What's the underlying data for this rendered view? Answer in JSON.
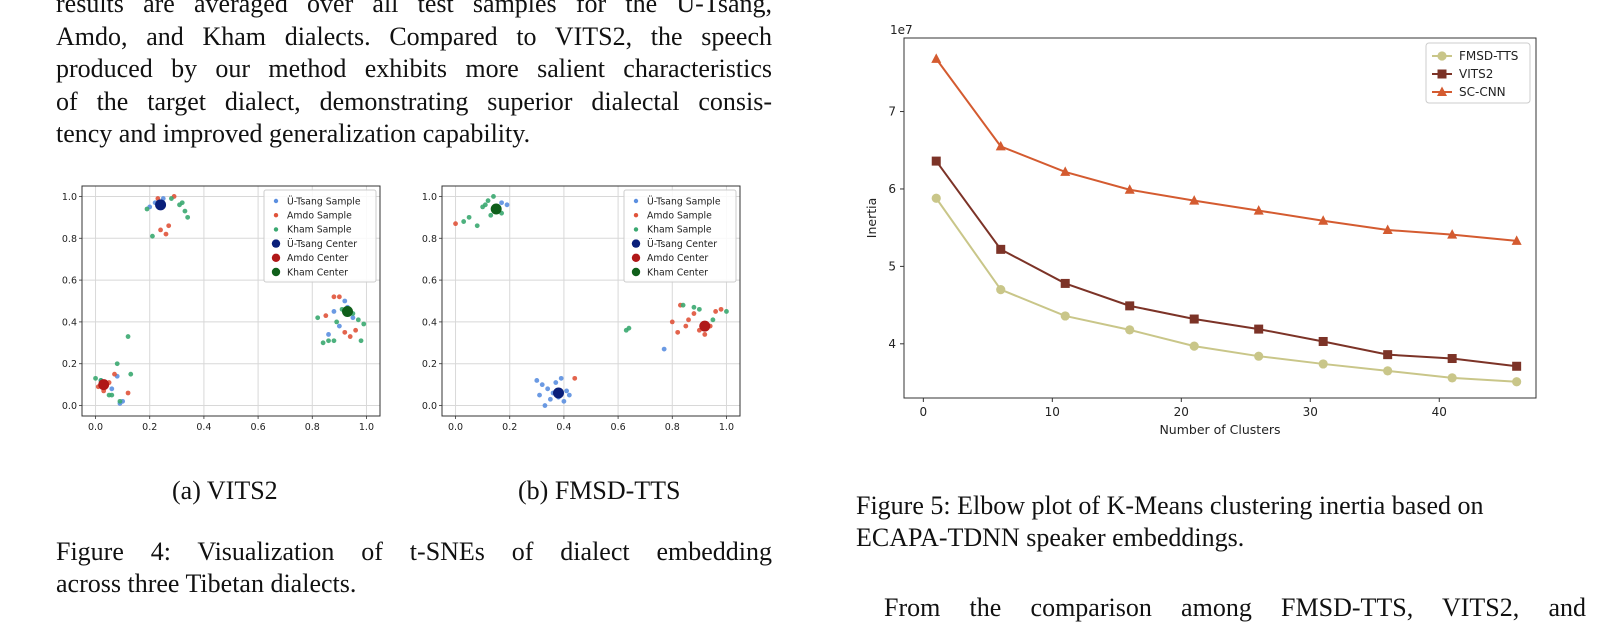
{
  "intro": {
    "lines": [
      "results are averaged over all test samples for the Ü-Tsang,",
      "Amdo, and Kham dialects. Compared to VITS2, the speech",
      "produced by our method exhibits more salient characteristics",
      "of the target dialect, demonstrating superior dialectal consis-",
      "tency and improved generalization capability."
    ]
  },
  "figure4": {
    "subcaption_a": "(a) VITS2",
    "subcaption_b": "(b) FMSD-TTS",
    "caption_line1": "Figure 4: Visualization of t-SNEs of dialect embedding",
    "caption_line2": "across three Tibetan dialects."
  },
  "figure5": {
    "caption_line1": "Figure 5: Elbow plot of K-Means clustering inertia based on",
    "caption_line2": "ECAPA-TDNN speaker embeddings."
  },
  "next_paragraph": "From the comparison among FMSD-TTS, VITS2, and",
  "chart_data": [
    {
      "type": "scatter",
      "panel": "(a) VITS2",
      "xlim": [
        0,
        1
      ],
      "ylim": [
        0,
        1
      ],
      "xticks": [
        "0.0",
        "0.2",
        "0.4",
        "0.6",
        "0.8",
        "1.0"
      ],
      "yticks": [
        "0.0",
        "0.2",
        "0.4",
        "0.6",
        "0.8",
        "1.0"
      ],
      "grid": true,
      "legend_position": "top-right",
      "legend": [
        "Ü-Tsang Sample",
        "Amdo Sample",
        "Kham Sample",
        "Ü-Tsang Center",
        "Amdo Center",
        "Kham Center"
      ],
      "colors": {
        "utsang": "#5b8fe0",
        "amdo": "#e0533a",
        "kham": "#3aa870",
        "utsang_c": "#0a1f7a",
        "amdo_c": "#b01818",
        "kham_c": "#0f5f1a"
      },
      "series": [
        {
          "name": "Ü-Tsang Sample",
          "key": "utsang",
          "points": [
            [
              0.02,
              0.12
            ],
            [
              0.04,
              0.1
            ],
            [
              0.06,
              0.08
            ],
            [
              0.08,
              0.14
            ],
            [
              0.1,
              0.02
            ],
            [
              0.09,
              0.01
            ],
            [
              0.2,
              0.95
            ],
            [
              0.22,
              0.97
            ],
            [
              0.25,
              0.99
            ],
            [
              0.88,
              0.45
            ],
            [
              0.92,
              0.5
            ],
            [
              0.95,
              0.42
            ],
            [
              0.9,
              0.38
            ],
            [
              0.86,
              0.34
            ],
            [
              0.93,
              0.47
            ]
          ]
        },
        {
          "name": "Amdo Sample",
          "key": "amdo",
          "points": [
            [
              0.01,
              0.09
            ],
            [
              0.03,
              0.07
            ],
            [
              0.05,
              0.11
            ],
            [
              0.07,
              0.15
            ],
            [
              0.12,
              0.06
            ],
            [
              0.24,
              0.84
            ],
            [
              0.26,
              0.82
            ],
            [
              0.27,
              0.86
            ],
            [
              0.23,
              0.99
            ],
            [
              0.29,
              1.0
            ],
            [
              0.88,
              0.52
            ],
            [
              0.9,
              0.52
            ],
            [
              0.92,
              0.35
            ],
            [
              0.94,
              0.33
            ],
            [
              0.96,
              0.36
            ],
            [
              0.85,
              0.43
            ]
          ]
        },
        {
          "name": "Kham Sample",
          "key": "kham",
          "points": [
            [
              0.0,
              0.13
            ],
            [
              0.02,
              0.12
            ],
            [
              0.05,
              0.05
            ],
            [
              0.08,
              0.2
            ],
            [
              0.12,
              0.33
            ],
            [
              0.13,
              0.15
            ],
            [
              0.06,
              0.05
            ],
            [
              0.09,
              0.02
            ],
            [
              0.19,
              0.94
            ],
            [
              0.21,
              0.81
            ],
            [
              0.28,
              0.99
            ],
            [
              0.31,
              0.96
            ],
            [
              0.33,
              0.93
            ],
            [
              0.34,
              0.9
            ],
            [
              0.32,
              0.97
            ],
            [
              0.82,
              0.42
            ],
            [
              0.84,
              0.3
            ],
            [
              0.86,
              0.31
            ],
            [
              0.88,
              0.31
            ],
            [
              0.95,
              0.44
            ],
            [
              0.97,
              0.41
            ],
            [
              0.99,
              0.39
            ],
            [
              0.98,
              0.31
            ],
            [
              0.91,
              0.46
            ],
            [
              0.89,
              0.4
            ]
          ]
        },
        {
          "name": "Ü-Tsang Center",
          "key": "utsang_c",
          "center": true,
          "points": [
            [
              0.24,
              0.96
            ]
          ]
        },
        {
          "name": "Amdo Center",
          "key": "amdo_c",
          "center": true,
          "points": [
            [
              0.03,
              0.1
            ]
          ]
        },
        {
          "name": "Kham Center",
          "key": "kham_c",
          "center": true,
          "points": [
            [
              0.93,
              0.45
            ]
          ]
        }
      ]
    },
    {
      "type": "scatter",
      "panel": "(b) FMSD-TTS",
      "xlim": [
        0,
        1
      ],
      "ylim": [
        0,
        1
      ],
      "xticks": [
        "0.0",
        "0.2",
        "0.4",
        "0.6",
        "0.8",
        "1.0"
      ],
      "yticks": [
        "0.0",
        "0.2",
        "0.4",
        "0.6",
        "0.8",
        "1.0"
      ],
      "grid": true,
      "legend_position": "top-right",
      "legend": [
        "Ü-Tsang Sample",
        "Amdo Sample",
        "Kham Sample",
        "Ü-Tsang Center",
        "Amdo Center",
        "Kham Center"
      ],
      "colors": {
        "utsang": "#5b8fe0",
        "amdo": "#e0533a",
        "kham": "#3aa870",
        "utsang_c": "#0a1f7a",
        "amdo_c": "#b01818",
        "kham_c": "#0f5f1a"
      },
      "series": [
        {
          "name": "Ü-Tsang Sample",
          "key": "utsang",
          "points": [
            [
              0.3,
              0.12
            ],
            [
              0.32,
              0.1
            ],
            [
              0.34,
              0.08
            ],
            [
              0.33,
              0.0
            ],
            [
              0.36,
              0.06
            ],
            [
              0.38,
              0.04
            ],
            [
              0.4,
              0.02
            ],
            [
              0.41,
              0.07
            ],
            [
              0.37,
              0.11
            ],
            [
              0.35,
              0.03
            ],
            [
              0.39,
              0.13
            ],
            [
              0.42,
              0.05
            ],
            [
              0.19,
              0.96
            ],
            [
              0.17,
              0.97
            ],
            [
              0.77,
              0.27
            ],
            [
              0.31,
              0.05
            ]
          ]
        },
        {
          "name": "Amdo Sample",
          "key": "amdo",
          "points": [
            [
              0.0,
              0.87
            ],
            [
              0.44,
              0.13
            ],
            [
              0.8,
              0.4
            ],
            [
              0.82,
              0.35
            ],
            [
              0.85,
              0.38
            ],
            [
              0.88,
              0.44
            ],
            [
              0.9,
              0.36
            ],
            [
              0.92,
              0.34
            ],
            [
              0.94,
              0.38
            ],
            [
              0.96,
              0.45
            ],
            [
              0.98,
              0.46
            ],
            [
              0.86,
              0.41
            ],
            [
              0.83,
              0.48
            ]
          ]
        },
        {
          "name": "Kham Sample",
          "key": "kham",
          "points": [
            [
              0.03,
              0.88
            ],
            [
              0.05,
              0.9
            ],
            [
              0.08,
              0.86
            ],
            [
              0.1,
              0.95
            ],
            [
              0.12,
              0.98
            ],
            [
              0.14,
              1.0
            ],
            [
              0.17,
              0.92
            ],
            [
              0.13,
              0.91
            ],
            [
              0.11,
              0.96
            ],
            [
              0.63,
              0.36
            ],
            [
              0.64,
              0.37
            ],
            [
              0.84,
              0.48
            ],
            [
              0.88,
              0.47
            ],
            [
              0.9,
              0.46
            ],
            [
              0.95,
              0.41
            ],
            [
              1.0,
              0.45
            ]
          ]
        },
        {
          "name": "Ü-Tsang Center",
          "key": "utsang_c",
          "center": true,
          "points": [
            [
              0.38,
              0.06
            ]
          ]
        },
        {
          "name": "Amdo Center",
          "key": "amdo_c",
          "center": true,
          "points": [
            [
              0.92,
              0.38
            ]
          ]
        },
        {
          "name": "Kham Center",
          "key": "kham_c",
          "center": true,
          "points": [
            [
              0.15,
              0.94
            ]
          ]
        }
      ]
    },
    {
      "type": "line",
      "panel": "Figure 5",
      "xlabel": "Number of Clusters",
      "ylabel": "Inertia",
      "scale_label": "1e7",
      "xlim": [
        -1.5,
        47.5
      ],
      "ylim": [
        3.3,
        7.95
      ],
      "xticks": [
        0,
        10,
        20,
        30,
        40
      ],
      "yticks": [
        4,
        5,
        6,
        7
      ],
      "x": [
        1,
        6,
        11,
        16,
        21,
        26,
        31,
        36,
        41,
        46
      ],
      "legend_position": "top-right",
      "series": [
        {
          "name": "FMSD-TTS",
          "color": "#c9c689",
          "marker": "circle",
          "values": [
            5.88,
            4.7,
            4.36,
            4.18,
            3.97,
            3.84,
            3.74,
            3.65,
            3.56,
            3.51
          ]
        },
        {
          "name": "VITS2",
          "color": "#7c3327",
          "marker": "square",
          "values": [
            6.36,
            5.22,
            4.78,
            4.49,
            4.32,
            4.19,
            4.03,
            3.86,
            3.81,
            3.71
          ]
        },
        {
          "name": "SC-CNN",
          "color": "#d45b30",
          "marker": "triangle",
          "values": [
            7.68,
            6.55,
            6.22,
            5.99,
            5.85,
            5.72,
            5.59,
            5.47,
            5.41,
            5.33
          ]
        }
      ]
    }
  ]
}
